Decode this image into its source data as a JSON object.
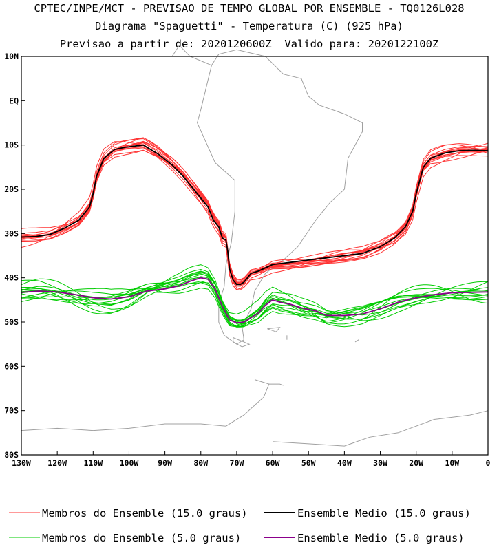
{
  "chart_data": {
    "type": "line",
    "title": "CPTEC/INPE/MCT - PREVISAO DE TEMPO GLOBAL POR ENSEMBLE - TQ0126L028",
    "subtitle": "Diagrama \"Spaguetti\" - Temperatura (C) (925 hPa)",
    "forecast_line": "Previsao a partir de: 2020120600Z  Valido para: 2020122100Z",
    "xlabel": "",
    "ylabel": "",
    "xlim": [
      -130,
      0
    ],
    "ylim": [
      -80,
      10
    ],
    "x_ticks": [
      {
        "value": -130,
        "label": "130W"
      },
      {
        "value": -120,
        "label": "120W"
      },
      {
        "value": -110,
        "label": "110W"
      },
      {
        "value": -100,
        "label": "100W"
      },
      {
        "value": -90,
        "label": "90W"
      },
      {
        "value": -80,
        "label": "80W"
      },
      {
        "value": -70,
        "label": "70W"
      },
      {
        "value": -60,
        "label": "60W"
      },
      {
        "value": -50,
        "label": "50W"
      },
      {
        "value": -40,
        "label": "40W"
      },
      {
        "value": -30,
        "label": "30W"
      },
      {
        "value": -20,
        "label": "20W"
      },
      {
        "value": -10,
        "label": "10W"
      },
      {
        "value": 0,
        "label": "0"
      }
    ],
    "y_ticks": [
      {
        "value": 10,
        "label": "10N"
      },
      {
        "value": 0,
        "label": "EQ"
      },
      {
        "value": -10,
        "label": "10S"
      },
      {
        "value": -20,
        "label": "20S"
      },
      {
        "value": -30,
        "label": "30S"
      },
      {
        "value": -40,
        "label": "40S"
      },
      {
        "value": -50,
        "label": "50S"
      },
      {
        "value": -60,
        "label": "60S"
      },
      {
        "value": -70,
        "label": "70S"
      },
      {
        "value": -80,
        "label": "80S"
      }
    ],
    "series": [
      {
        "name": "Ensemble Medio (15.0 graus)",
        "color": "#000000",
        "x": [
          -130,
          -126,
          -122,
          -118,
          -114,
          -111,
          -110,
          -109,
          -107,
          -104,
          -101,
          -96,
          -92,
          -88,
          -85,
          -82,
          -80,
          -78,
          -76.5,
          -75,
          -74,
          -73,
          -72.5,
          -72,
          -71,
          -70,
          -69,
          -68,
          -67,
          -66,
          -64,
          -60,
          -55,
          -50,
          -45,
          -40,
          -35,
          -30,
          -26,
          -23,
          -21,
          -20,
          -19,
          -18,
          -16,
          -12,
          -8,
          -4,
          0
        ],
        "y": [
          -30.8,
          -30.7,
          -30.2,
          -28.8,
          -27,
          -24,
          -21,
          -17,
          -13,
          -11,
          -10.5,
          -10,
          -12,
          -14.5,
          -17,
          -20,
          -22,
          -24,
          -27,
          -28.5,
          -31,
          -31.5,
          -34,
          -38,
          -40.5,
          -41.5,
          -41.5,
          -41,
          -40,
          -39,
          -38.5,
          -37,
          -36.5,
          -36,
          -35.5,
          -35,
          -34.5,
          -33,
          -31,
          -28.5,
          -25,
          -21,
          -18,
          -15,
          -13,
          -11.8,
          -11.3,
          -11.2,
          -11.3
        ]
      },
      {
        "name": "Ensemble Medio (5.0 graus)",
        "color": "#8b008b",
        "x": [
          -130,
          -125,
          -120,
          -115,
          -110,
          -105,
          -100,
          -95,
          -90,
          -86,
          -83,
          -80,
          -78,
          -76,
          -74,
          -72,
          -70,
          -68,
          -66,
          -64,
          -62,
          -60,
          -58,
          -55,
          -52,
          -48,
          -45,
          -40,
          -35,
          -30,
          -25,
          -20,
          -15,
          -10,
          -5,
          0
        ],
        "y": [
          -43.3,
          -43,
          -43.2,
          -43.8,
          -44.5,
          -44.8,
          -44.3,
          -43,
          -42.5,
          -41.8,
          -40.8,
          -40,
          -40.3,
          -42.5,
          -46.5,
          -49.5,
          -50.2,
          -50,
          -49,
          -48,
          -46.2,
          -45,
          -45.5,
          -46,
          -46.8,
          -47.5,
          -48.5,
          -48.5,
          -48.2,
          -47,
          -45.5,
          -44.5,
          -43.8,
          -43.4,
          -43.3,
          -43.2
        ]
      }
    ],
    "legend": [
      {
        "label": "Membros do Ensemble (15.0 graus)",
        "color": "#ff3333"
      },
      {
        "label": "Ensemble Medio (15.0 graus)",
        "color": "#000000"
      },
      {
        "label": "Membros do Ensemble (5.0 graus)",
        "color": "#00cc00"
      },
      {
        "label": "Ensemble Medio (5.0 graus)",
        "color": "#8b008b"
      }
    ],
    "legend_position": "bottom",
    "coast_color": "#a0a0a0",
    "member_count": 14
  }
}
